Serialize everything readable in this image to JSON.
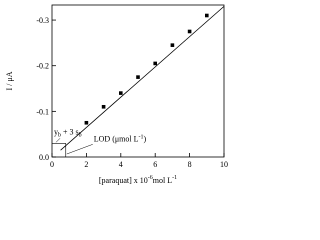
{
  "chart_data": {
    "type": "scatter",
    "x": [
      2,
      3,
      4,
      5,
      6,
      7,
      8,
      9
    ],
    "values": [
      -0.075,
      -0.11,
      -0.14,
      -0.175,
      -0.205,
      -0.245,
      -0.275,
      -0.31
    ],
    "color": "#000000",
    "fit": {
      "x": [
        0.5,
        10
      ],
      "values": [
        -0.015,
        -0.33
      ]
    },
    "lod": {
      "x": 0.8,
      "y": -0.03
    },
    "xlim": [
      0,
      10
    ],
    "ylim": [
      0,
      -0.333
    ],
    "xticks": [
      0,
      2,
      4,
      6,
      8,
      10
    ],
    "yticks": [
      {
        "value": 0,
        "label": "0.0"
      },
      -0.1,
      -0.2,
      -0.3
    ],
    "xlabel": [
      "[paraquat] x 10",
      "-6",
      "mol L",
      "-1"
    ],
    "ylabel": "I / μA",
    "annotations": [
      [
        "y",
        "b",
        " + 3 s",
        "b"
      ],
      [
        "LOD (μmol L",
        "-1",
        ")"
      ]
    ]
  }
}
